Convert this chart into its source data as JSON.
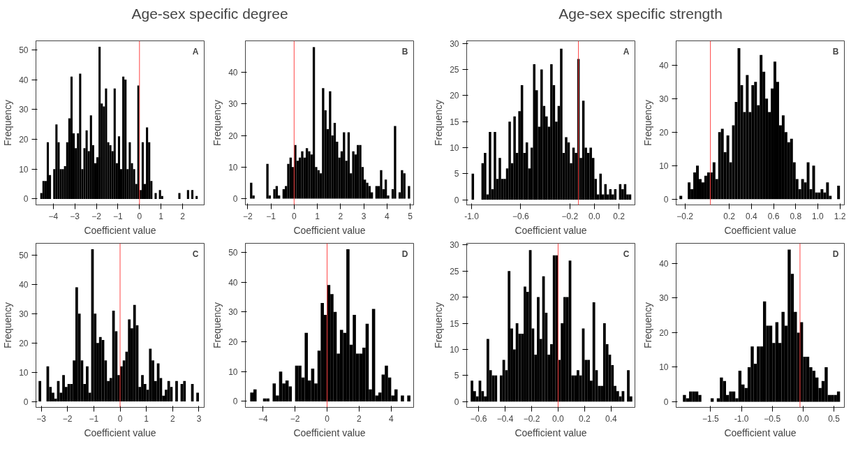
{
  "chart_data": [
    {
      "type": "other",
      "title": "Age-sex specific degree"
    },
    {
      "type": "histogram",
      "annotations": [
        "A"
      ],
      "xlabel": "Coefficient value",
      "ylabel": "Frequency",
      "color": "#000000",
      "bins": [
        -4.6,
        -4.5,
        -4.4,
        -4.3,
        -4.2,
        -4.1,
        -4,
        -3.9,
        -3.8,
        -3.7,
        -3.6,
        -3.5,
        -3.4,
        -3.3,
        -3.2,
        -3.1,
        -3,
        -2.9,
        -2.8,
        -2.7,
        -2.6,
        -2.5,
        -2.4,
        -2.3,
        -2.2,
        -2.1,
        -2,
        -1.9,
        -1.8,
        -1.7,
        -1.6,
        -1.5,
        -1.4,
        -1.3,
        -1.2,
        -1.1,
        -1,
        -0.9,
        -0.8,
        -0.7,
        -0.6,
        -0.5,
        -0.4,
        -0.3,
        -0.2,
        -0.1,
        0,
        0.1,
        0.2,
        0.3,
        0.4,
        0.5,
        0.6,
        0.7,
        0.8,
        0.9,
        1,
        1.1,
        1.2,
        1.3,
        1.4,
        1.5,
        1.6,
        1.7,
        1.8,
        1.9,
        2,
        2.1,
        2.2,
        2.3,
        2.4,
        2.5,
        2.6,
        2.7
      ],
      "values": [
        2,
        6,
        6,
        19,
        8,
        0,
        10,
        25,
        19,
        10,
        10,
        11,
        19,
        27,
        41,
        22,
        17,
        22,
        42,
        10,
        17,
        23,
        16,
        28,
        18,
        12,
        14,
        51,
        32,
        31,
        37,
        19,
        18,
        16,
        37,
        12,
        21,
        10,
        41,
        40,
        10,
        19,
        12,
        10,
        5,
        38,
        3,
        19,
        5,
        24,
        19,
        6,
        0,
        2,
        0,
        3,
        1,
        0,
        0,
        0,
        0,
        0,
        0,
        0,
        2,
        0,
        0,
        0,
        3,
        0,
        3,
        0,
        1
      ],
      "xlim": [
        -4.8,
        3.0
      ],
      "ylim": [
        -2,
        53
      ],
      "xticks": [
        -4,
        -3,
        -2,
        -1,
        0,
        1,
        2
      ],
      "yticks": [
        0,
        10,
        20,
        30,
        40,
        50
      ],
      "ref_lines": [
        {
          "axis": "x",
          "value": 0,
          "color": "#ff4444"
        }
      ]
    },
    {
      "type": "histogram",
      "annotations": [
        "B"
      ],
      "xlabel": "Coefficient value",
      "ylabel": "Frequency",
      "color": "#000000",
      "bins": [
        -1.9,
        -1.8,
        -1.7,
        -1.6,
        -1.5,
        -1.4,
        -1.3,
        -1.2,
        -1.1,
        -1,
        -0.9,
        -0.8,
        -0.7,
        -0.6,
        -0.5,
        -0.4,
        -0.3,
        -0.2,
        -0.1,
        0,
        0.1,
        0.2,
        0.3,
        0.4,
        0.5,
        0.6,
        0.7,
        0.8,
        0.9,
        1,
        1.1,
        1.2,
        1.3,
        1.4,
        1.5,
        1.6,
        1.7,
        1.8,
        1.9,
        2,
        2.1,
        2.2,
        2.3,
        2.4,
        2.5,
        2.6,
        2.7,
        2.8,
        2.9,
        3,
        3.1,
        3.2,
        3.3,
        3.4,
        3.5,
        3.6,
        3.7,
        3.8,
        3.9,
        4,
        4.1,
        4.2,
        4.3,
        4.4,
        4.5,
        4.6,
        4.7,
        4.8,
        4.9,
        5
      ],
      "values": [
        5,
        1,
        0,
        0,
        0,
        0,
        0,
        11,
        1,
        0,
        3,
        4,
        1,
        0,
        3,
        4,
        11,
        13,
        10,
        17,
        12,
        13,
        15,
        13,
        16,
        15,
        14,
        48,
        10,
        9,
        8,
        35,
        28,
        22,
        34,
        20,
        24,
        18,
        13,
        15,
        21,
        12,
        21,
        8,
        15,
        14,
        17,
        17,
        10,
        6,
        5,
        4,
        2,
        0,
        4,
        4,
        9,
        3,
        6,
        1,
        0,
        3,
        23,
        0,
        2,
        9,
        8,
        0,
        4
      ],
      "xlim": [
        -2.1,
        5.15
      ],
      "ylim": [
        -2,
        50
      ],
      "xticks": [
        -2,
        -1,
        0,
        1,
        2,
        3,
        4,
        5
      ],
      "yticks": [
        0,
        10,
        20,
        30,
        40
      ],
      "ref_lines": [
        {
          "axis": "x",
          "value": 0,
          "color": "#ff4444"
        }
      ]
    },
    {
      "type": "histogram",
      "annotations": [
        "C"
      ],
      "xlabel": "Coefficient value",
      "ylabel": "Frequency",
      "color": "#000000",
      "bins": [
        -3.1,
        -3,
        -2.9,
        -2.8,
        -2.7,
        -2.6,
        -2.5,
        -2.4,
        -2.3,
        -2.2,
        -2.1,
        -2,
        -1.9,
        -1.8,
        -1.7,
        -1.6,
        -1.5,
        -1.4,
        -1.3,
        -1.2,
        -1.1,
        -1,
        -0.9,
        -0.8,
        -0.7,
        -0.6,
        -0.5,
        -0.4,
        -0.3,
        -0.2,
        -0.1,
        0,
        0.1,
        0.2,
        0.3,
        0.4,
        0.5,
        0.6,
        0.7,
        0.8,
        0.9,
        1,
        1.1,
        1.2,
        1.3,
        1.4,
        1.5,
        1.6,
        1.7,
        1.8,
        1.9,
        2,
        2.1,
        2.2,
        2.3,
        2.4,
        2.5,
        2.6,
        2.7,
        2.8,
        2.9,
        3
      ],
      "values": [
        7,
        0,
        0,
        12,
        5,
        3,
        1,
        7,
        3,
        9,
        5,
        6,
        6,
        14,
        39,
        30,
        14,
        6,
        12,
        3,
        52,
        30,
        20,
        22,
        21,
        14,
        7,
        8,
        31,
        24,
        9,
        12,
        14,
        17,
        28,
        25,
        33,
        26,
        5,
        9,
        6,
        4,
        18,
        14,
        7,
        13,
        8,
        2,
        4,
        7,
        5,
        0,
        7,
        0,
        6,
        7,
        0,
        0,
        6,
        0,
        3
      ],
      "xlim": [
        -3.2,
        3.2
      ],
      "ylim": [
        -2,
        54
      ],
      "xticks": [
        -3,
        -2,
        -1,
        0,
        1,
        2,
        3
      ],
      "yticks": [
        0,
        10,
        20,
        30,
        40,
        50
      ],
      "ref_lines": [
        {
          "axis": "x",
          "value": 0,
          "color": "#ff4444"
        }
      ]
    },
    {
      "type": "histogram",
      "annotations": [
        "D"
      ],
      "xlabel": "Coefficient value",
      "ylabel": "Frequency",
      "color": "#000000",
      "bins": [
        -4.8,
        -4.6,
        -4.4,
        -4.2,
        -4,
        -3.8,
        -3.6,
        -3.4,
        -3.2,
        -3,
        -2.8,
        -2.6,
        -2.4,
        -2.2,
        -2,
        -1.8,
        -1.6,
        -1.4,
        -1.2,
        -1,
        -0.8,
        -0.6,
        -0.4,
        -0.2,
        0,
        0.2,
        0.4,
        0.6,
        0.8,
        1,
        1.2,
        1.4,
        1.6,
        1.8,
        2,
        2.2,
        2.4,
        2.6,
        2.8,
        3,
        3.2,
        3.4,
        3.6,
        3.8,
        4,
        4.2,
        4.4,
        4.6,
        4.8,
        5,
        5.2
      ],
      "values": [
        3,
        4,
        0,
        0,
        1,
        1,
        0,
        6,
        2,
        10,
        6,
        7,
        5,
        0,
        12,
        12,
        8,
        23,
        7,
        11,
        6,
        17,
        33,
        29,
        39,
        36,
        30,
        16,
        24,
        23,
        51,
        19,
        29,
        16,
        16,
        18,
        26,
        4,
        31,
        2,
        3,
        9,
        12,
        8,
        2,
        4,
        0,
        2,
        0,
        2
      ],
      "xlim": [
        -5.1,
        5.4
      ],
      "ylim": [
        -2,
        53
      ],
      "xticks": [
        -4,
        -2,
        0,
        2,
        4
      ],
      "yticks": [
        0,
        10,
        20,
        30,
        40,
        50
      ],
      "ref_lines": [
        {
          "axis": "x",
          "value": 0,
          "color": "#ff4444"
        }
      ]
    },
    {
      "type": "other",
      "title": "Age-sex specific strength"
    },
    {
      "type": "histogram",
      "annotations": [
        "A"
      ],
      "xlabel": "Coefficient value",
      "ylabel": "Frequency",
      "color": "#000000",
      "bins": [
        -1,
        -0.98,
        -0.96,
        -0.94,
        -0.92,
        -0.9,
        -0.88,
        -0.86,
        -0.84,
        -0.82,
        -0.8,
        -0.78,
        -0.76,
        -0.74,
        -0.72,
        -0.7,
        -0.68,
        -0.66,
        -0.64,
        -0.62,
        -0.6,
        -0.58,
        -0.56,
        -0.54,
        -0.52,
        -0.5,
        -0.48,
        -0.46,
        -0.44,
        -0.42,
        -0.4,
        -0.38,
        -0.36,
        -0.34,
        -0.32,
        -0.3,
        -0.28,
        -0.26,
        -0.24,
        -0.22,
        -0.2,
        -0.18,
        -0.16,
        -0.14,
        -0.12,
        -0.1,
        -0.08,
        -0.06,
        -0.04,
        -0.02,
        0,
        0.02,
        0.04,
        0.06,
        0.08,
        0.1,
        0.12,
        0.14,
        0.16,
        0.18,
        0.2,
        0.22,
        0.24,
        0.26,
        0.28,
        0.3
      ],
      "values": [
        5,
        0,
        0,
        0,
        7,
        9,
        1,
        13,
        2,
        13,
        4,
        8,
        4,
        4,
        6,
        15,
        7,
        16,
        9,
        17,
        22,
        9,
        11,
        6,
        10,
        26,
        21,
        14,
        25,
        18,
        16,
        14,
        26,
        22,
        15,
        18,
        29,
        9,
        12,
        11,
        7,
        10,
        9,
        27,
        8,
        19,
        10,
        9,
        10,
        8,
        4,
        1,
        5,
        1,
        3,
        1,
        2,
        1,
        2,
        0,
        3,
        2,
        3,
        1,
        1
      ],
      "xlim": [
        -1.04,
        0.33
      ],
      "ylim": [
        -1,
        30.5
      ],
      "xticks": [
        {
          "value": -1,
          "label": "-1.0"
        },
        -0.6,
        -0.2,
        {
          "value": 0,
          "label": "0.0"
        },
        0.2
      ],
      "yticks": [
        0,
        5,
        10,
        15,
        20,
        25,
        30
      ],
      "ref_lines": [
        {
          "axis": "x",
          "value": -0.13,
          "color": "#ff4444"
        }
      ]
    },
    {
      "type": "histogram",
      "annotations": [
        "B"
      ],
      "xlabel": "Coefficient value",
      "ylabel": "Frequency",
      "color": "#000000",
      "bins": [
        -0.25,
        -0.225,
        -0.2,
        -0.175,
        -0.15,
        -0.125,
        -0.1,
        -0.075,
        -0.05,
        -0.025,
        0,
        0.025,
        0.05,
        0.075,
        0.1,
        0.125,
        0.15,
        0.175,
        0.2,
        0.225,
        0.25,
        0.275,
        0.3,
        0.325,
        0.35,
        0.375,
        0.4,
        0.425,
        0.45,
        0.475,
        0.5,
        0.525,
        0.55,
        0.575,
        0.6,
        0.625,
        0.65,
        0.675,
        0.7,
        0.725,
        0.75,
        0.775,
        0.8,
        0.825,
        0.85,
        0.875,
        0.9,
        0.925,
        0.95,
        0.975,
        1,
        1.025,
        1.05,
        1.075,
        1.1,
        1.125,
        1.15,
        1.175,
        1.2
      ],
      "values": [
        1,
        0,
        0,
        5,
        3,
        8,
        10,
        6,
        5,
        7,
        8,
        8,
        11,
        6,
        20,
        21,
        14,
        19,
        11,
        22,
        29,
        45,
        34,
        26,
        37,
        26,
        34,
        35,
        28,
        43,
        38,
        30,
        26,
        33,
        41,
        35,
        22,
        25,
        20,
        17,
        18,
        11,
        6,
        3,
        6,
        5,
        11,
        3,
        10,
        2,
        2,
        3,
        2,
        5,
        1,
        0,
        0,
        4
      ],
      "xlim": [
        -0.28,
        1.24
      ],
      "ylim": [
        -1.7,
        47.2
      ],
      "xticks": [
        -0.2,
        0.2,
        0.4,
        0.6,
        0.8,
        {
          "value": 1,
          "label": "1.0"
        },
        1.2
      ],
      "yticks": [
        0,
        10,
        20,
        30,
        40
      ],
      "ref_lines": [
        {
          "axis": "x",
          "value": 0.03,
          "color": "#ff4444"
        }
      ]
    },
    {
      "type": "histogram",
      "annotations": [
        "C"
      ],
      "xlabel": "Coefficient value",
      "ylabel": "Frequency",
      "color": "#000000",
      "bins": [
        -0.66,
        -0.64,
        -0.62,
        -0.6,
        -0.58,
        -0.56,
        -0.54,
        -0.52,
        -0.5,
        -0.48,
        -0.46,
        -0.44,
        -0.42,
        -0.4,
        -0.38,
        -0.36,
        -0.34,
        -0.32,
        -0.3,
        -0.28,
        -0.26,
        -0.24,
        -0.22,
        -0.2,
        -0.18,
        -0.16,
        -0.14,
        -0.12,
        -0.1,
        -0.08,
        -0.06,
        -0.04,
        -0.02,
        0,
        0.02,
        0.04,
        0.06,
        0.08,
        0.1,
        0.12,
        0.14,
        0.16,
        0.18,
        0.2,
        0.22,
        0.24,
        0.26,
        0.28,
        0.3,
        0.32,
        0.34,
        0.36,
        0.38,
        0.4,
        0.42,
        0.44,
        0.46,
        0.48,
        0.5,
        0.52,
        0.54,
        0.56
      ],
      "values": [
        4,
        2,
        1,
        4,
        2,
        1,
        12,
        6,
        5,
        5,
        0,
        5,
        8,
        6,
        25,
        14,
        10,
        15,
        13,
        13,
        22,
        21,
        29,
        14,
        9,
        20,
        12,
        24,
        17,
        9,
        11,
        28,
        28,
        8,
        15,
        20,
        20,
        27,
        5,
        5,
        6,
        5,
        14,
        8,
        8,
        4,
        19,
        6,
        3,
        3,
        15,
        11,
        9,
        7,
        3,
        2,
        1,
        2,
        0,
        6,
        1
      ],
      "xlim": [
        -0.69,
        0.58
      ],
      "ylim": [
        -1.1,
        30.3
      ],
      "xticks": [
        -0.6,
        -0.4,
        -0.2,
        {
          "value": 0,
          "label": "0.0"
        },
        0.2,
        0.4
      ],
      "yticks": [
        0,
        5,
        10,
        15,
        20,
        25,
        30
      ],
      "ref_lines": [
        {
          "axis": "x",
          "value": 0,
          "color": "#ff4444"
        }
      ]
    },
    {
      "type": "histogram",
      "annotations": [
        "D"
      ],
      "xlabel": "Coefficient value",
      "ylabel": "Frequency",
      "color": "#000000",
      "bins": [
        -1.95,
        -1.9,
        -1.85,
        -1.8,
        -1.75,
        -1.7,
        -1.65,
        -1.6,
        -1.55,
        -1.5,
        -1.45,
        -1.4,
        -1.35,
        -1.3,
        -1.25,
        -1.2,
        -1.15,
        -1.1,
        -1.05,
        -1,
        -0.95,
        -0.9,
        -0.85,
        -0.8,
        -0.75,
        -0.7,
        -0.65,
        -0.6,
        -0.55,
        -0.5,
        -0.45,
        -0.4,
        -0.35,
        -0.3,
        -0.25,
        -0.2,
        -0.15,
        -0.1,
        -0.05,
        0,
        0.05,
        0.1,
        0.15,
        0.2,
        0.25,
        0.3,
        0.35,
        0.4,
        0.45,
        0.5,
        0.55,
        0.6
      ],
      "values": [
        2,
        1,
        3,
        3,
        3,
        2,
        0,
        0,
        0,
        1,
        0,
        1,
        7,
        6,
        2,
        3,
        3,
        1,
        9,
        5,
        4,
        10,
        16,
        11,
        16,
        16,
        29,
        22,
        22,
        17,
        23,
        17,
        26,
        22,
        44,
        37,
        26,
        20,
        23,
        13,
        13,
        10,
        9,
        7,
        4,
        6,
        10,
        2,
        2,
        2,
        3
      ],
      "xlim": [
        -2.06,
        0.67
      ],
      "ylim": [
        -1.6,
        45.8
      ],
      "xticks": [
        -1.5,
        {
          "value": -1,
          "label": "-1.0"
        },
        -0.5,
        {
          "value": 0,
          "label": "0.0"
        },
        0.5
      ],
      "yticks": [
        0,
        10,
        20,
        30,
        40
      ],
      "ref_lines": [
        {
          "axis": "x",
          "value": -0.05,
          "color": "#ff4444"
        }
      ]
    }
  ]
}
